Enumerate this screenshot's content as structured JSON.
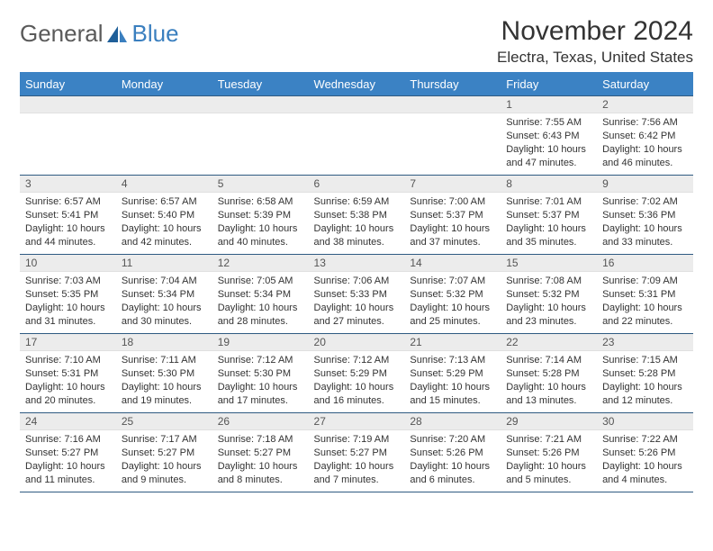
{
  "logo": {
    "text1": "General",
    "text2": "Blue"
  },
  "title": "November 2024",
  "location": "Electra, Texas, United States",
  "colors": {
    "header_bg": "#3b82c4",
    "header_text": "#ffffff",
    "row_border": "#2f5b82",
    "daynum_bg": "#ececec",
    "logo_blue": "#3a7fbf"
  },
  "day_headers": [
    "Sunday",
    "Monday",
    "Tuesday",
    "Wednesday",
    "Thursday",
    "Friday",
    "Saturday"
  ],
  "weeks": [
    [
      {
        "n": "",
        "sr": "",
        "ss": "",
        "dl": ""
      },
      {
        "n": "",
        "sr": "",
        "ss": "",
        "dl": ""
      },
      {
        "n": "",
        "sr": "",
        "ss": "",
        "dl": ""
      },
      {
        "n": "",
        "sr": "",
        "ss": "",
        "dl": ""
      },
      {
        "n": "",
        "sr": "",
        "ss": "",
        "dl": ""
      },
      {
        "n": "1",
        "sr": "Sunrise: 7:55 AM",
        "ss": "Sunset: 6:43 PM",
        "dl": "Daylight: 10 hours and 47 minutes."
      },
      {
        "n": "2",
        "sr": "Sunrise: 7:56 AM",
        "ss": "Sunset: 6:42 PM",
        "dl": "Daylight: 10 hours and 46 minutes."
      }
    ],
    [
      {
        "n": "3",
        "sr": "Sunrise: 6:57 AM",
        "ss": "Sunset: 5:41 PM",
        "dl": "Daylight: 10 hours and 44 minutes."
      },
      {
        "n": "4",
        "sr": "Sunrise: 6:57 AM",
        "ss": "Sunset: 5:40 PM",
        "dl": "Daylight: 10 hours and 42 minutes."
      },
      {
        "n": "5",
        "sr": "Sunrise: 6:58 AM",
        "ss": "Sunset: 5:39 PM",
        "dl": "Daylight: 10 hours and 40 minutes."
      },
      {
        "n": "6",
        "sr": "Sunrise: 6:59 AM",
        "ss": "Sunset: 5:38 PM",
        "dl": "Daylight: 10 hours and 38 minutes."
      },
      {
        "n": "7",
        "sr": "Sunrise: 7:00 AM",
        "ss": "Sunset: 5:37 PM",
        "dl": "Daylight: 10 hours and 37 minutes."
      },
      {
        "n": "8",
        "sr": "Sunrise: 7:01 AM",
        "ss": "Sunset: 5:37 PM",
        "dl": "Daylight: 10 hours and 35 minutes."
      },
      {
        "n": "9",
        "sr": "Sunrise: 7:02 AM",
        "ss": "Sunset: 5:36 PM",
        "dl": "Daylight: 10 hours and 33 minutes."
      }
    ],
    [
      {
        "n": "10",
        "sr": "Sunrise: 7:03 AM",
        "ss": "Sunset: 5:35 PM",
        "dl": "Daylight: 10 hours and 31 minutes."
      },
      {
        "n": "11",
        "sr": "Sunrise: 7:04 AM",
        "ss": "Sunset: 5:34 PM",
        "dl": "Daylight: 10 hours and 30 minutes."
      },
      {
        "n": "12",
        "sr": "Sunrise: 7:05 AM",
        "ss": "Sunset: 5:34 PM",
        "dl": "Daylight: 10 hours and 28 minutes."
      },
      {
        "n": "13",
        "sr": "Sunrise: 7:06 AM",
        "ss": "Sunset: 5:33 PM",
        "dl": "Daylight: 10 hours and 27 minutes."
      },
      {
        "n": "14",
        "sr": "Sunrise: 7:07 AM",
        "ss": "Sunset: 5:32 PM",
        "dl": "Daylight: 10 hours and 25 minutes."
      },
      {
        "n": "15",
        "sr": "Sunrise: 7:08 AM",
        "ss": "Sunset: 5:32 PM",
        "dl": "Daylight: 10 hours and 23 minutes."
      },
      {
        "n": "16",
        "sr": "Sunrise: 7:09 AM",
        "ss": "Sunset: 5:31 PM",
        "dl": "Daylight: 10 hours and 22 minutes."
      }
    ],
    [
      {
        "n": "17",
        "sr": "Sunrise: 7:10 AM",
        "ss": "Sunset: 5:31 PM",
        "dl": "Daylight: 10 hours and 20 minutes."
      },
      {
        "n": "18",
        "sr": "Sunrise: 7:11 AM",
        "ss": "Sunset: 5:30 PM",
        "dl": "Daylight: 10 hours and 19 minutes."
      },
      {
        "n": "19",
        "sr": "Sunrise: 7:12 AM",
        "ss": "Sunset: 5:30 PM",
        "dl": "Daylight: 10 hours and 17 minutes."
      },
      {
        "n": "20",
        "sr": "Sunrise: 7:12 AM",
        "ss": "Sunset: 5:29 PM",
        "dl": "Daylight: 10 hours and 16 minutes."
      },
      {
        "n": "21",
        "sr": "Sunrise: 7:13 AM",
        "ss": "Sunset: 5:29 PM",
        "dl": "Daylight: 10 hours and 15 minutes."
      },
      {
        "n": "22",
        "sr": "Sunrise: 7:14 AM",
        "ss": "Sunset: 5:28 PM",
        "dl": "Daylight: 10 hours and 13 minutes."
      },
      {
        "n": "23",
        "sr": "Sunrise: 7:15 AM",
        "ss": "Sunset: 5:28 PM",
        "dl": "Daylight: 10 hours and 12 minutes."
      }
    ],
    [
      {
        "n": "24",
        "sr": "Sunrise: 7:16 AM",
        "ss": "Sunset: 5:27 PM",
        "dl": "Daylight: 10 hours and 11 minutes."
      },
      {
        "n": "25",
        "sr": "Sunrise: 7:17 AM",
        "ss": "Sunset: 5:27 PM",
        "dl": "Daylight: 10 hours and 9 minutes."
      },
      {
        "n": "26",
        "sr": "Sunrise: 7:18 AM",
        "ss": "Sunset: 5:27 PM",
        "dl": "Daylight: 10 hours and 8 minutes."
      },
      {
        "n": "27",
        "sr": "Sunrise: 7:19 AM",
        "ss": "Sunset: 5:27 PM",
        "dl": "Daylight: 10 hours and 7 minutes."
      },
      {
        "n": "28",
        "sr": "Sunrise: 7:20 AM",
        "ss": "Sunset: 5:26 PM",
        "dl": "Daylight: 10 hours and 6 minutes."
      },
      {
        "n": "29",
        "sr": "Sunrise: 7:21 AM",
        "ss": "Sunset: 5:26 PM",
        "dl": "Daylight: 10 hours and 5 minutes."
      },
      {
        "n": "30",
        "sr": "Sunrise: 7:22 AM",
        "ss": "Sunset: 5:26 PM",
        "dl": "Daylight: 10 hours and 4 minutes."
      }
    ]
  ]
}
